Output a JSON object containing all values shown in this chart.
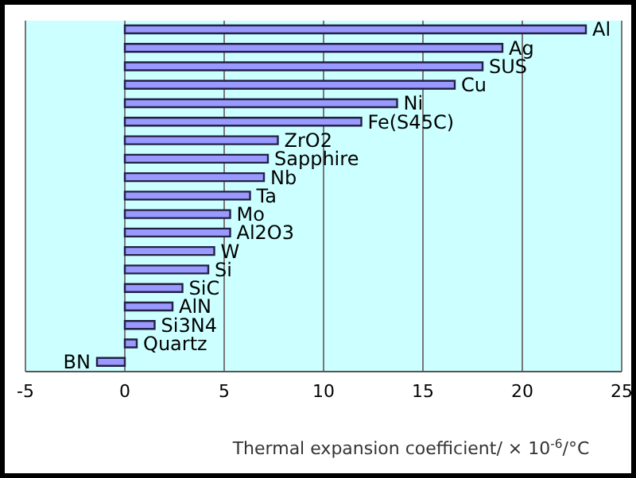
{
  "chart_data": {
    "type": "bar",
    "orientation": "horizontal",
    "xlabel": "Thermal expansion coefficient/ × 10$^{-6}$/°C",
    "categories": [
      "Al",
      "Ag",
      "SUS",
      "Cu",
      "Ni",
      "Fe(S45C)",
      "ZrO2",
      "Sapphire",
      "Nb",
      "Ta",
      "Mo",
      "Al2O3",
      "W",
      "Si",
      "SiC",
      "AlN",
      "Si3N4",
      "Quartz",
      "BN"
    ],
    "values": [
      23.2,
      19.0,
      18.0,
      16.6,
      13.7,
      11.9,
      7.7,
      7.2,
      7.0,
      6.3,
      5.3,
      5.3,
      4.5,
      4.2,
      2.9,
      2.4,
      1.5,
      0.6,
      -1.4
    ],
    "color": "#9999ff",
    "xlim": [
      -5,
      25
    ],
    "xticks": [
      -5,
      0,
      5,
      10,
      15,
      20,
      25
    ],
    "grid": "x",
    "tick_labels": "x",
    "legend": false
  }
}
